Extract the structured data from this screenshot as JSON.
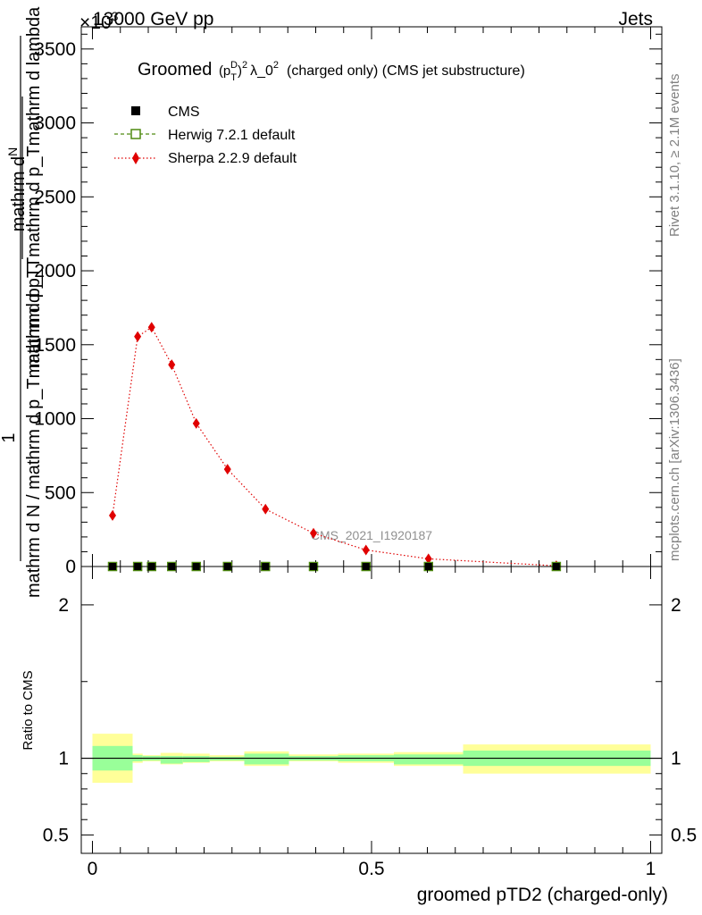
{
  "header": {
    "left": "13000 GeV pp",
    "right": "Jets",
    "exponent": "×10",
    "exponent_power": "3"
  },
  "side_labels": {
    "rivet": "Rivet 3.1.10, ≥ 2.1M events",
    "mcplots": "mcplots.cern.ch [arXiv:1306.3436]"
  },
  "watermark": "CMS_2021_I1920187",
  "title": {
    "prefix": "Groomed",
    "p": "(p",
    "sub_T": "T",
    "sup_D": "D",
    "close": ")",
    "sup_2": "2",
    "lambda": "λ_0",
    "sup_2b": "2",
    "suffix": "(charged only) (CMS jet substructure)"
  },
  "ylabel": {
    "one": "1",
    "num_top": "mathrm d",
    "num_N": "N",
    "den_top": "mathrm d p_Tmathrm d p_Tmathrm d lambda",
    "den": "mathrm d N / mathrm d p_Tmathrm d p_T"
  },
  "xlabel": "groomed pTD2 (charged-only)",
  "ratio_ylabel": "Ratio to CMS",
  "legend": [
    {
      "name": "CMS",
      "color": "#000000"
    },
    {
      "name": "Herwig 7.2.1 default",
      "color": "#4f8a10"
    },
    {
      "name": "Sherpa 2.2.9 default",
      "color": "#e00000"
    }
  ],
  "colors": {
    "band_inner": "#99ff99",
    "band_outer": "#ffff99",
    "sherpa": "#e00000",
    "herwig": "#4f8a10"
  },
  "chart_data": [
    {
      "type": "line",
      "panel": "main",
      "xlim": [
        -0.02,
        1.02
      ],
      "ylim": [
        0,
        3650
      ],
      "y_ticks": [
        0,
        500,
        1000,
        1500,
        2000,
        2500,
        3000,
        3500
      ],
      "y_tick_labels": [
        "0",
        "500",
        "1000",
        "1500",
        "2000",
        "2500",
        "3000",
        "3500"
      ],
      "series": [
        {
          "name": "CMS",
          "x": [
            0.036,
            0.081,
            0.106,
            0.142,
            0.186,
            0.242,
            0.31,
            0.396,
            0.49,
            0.602,
            0.831
          ],
          "values": [
            0,
            0,
            0,
            0,
            0,
            0,
            0,
            0,
            0,
            0,
            0
          ]
        },
        {
          "name": "Herwig 7.2.1 default",
          "x": [
            0.036,
            0.081,
            0.106,
            0.142,
            0.186,
            0.242,
            0.31,
            0.396,
            0.49,
            0.602,
            0.831
          ],
          "values": [
            0,
            0,
            0,
            0,
            0,
            0,
            0,
            0,
            0,
            0,
            0
          ]
        },
        {
          "name": "Sherpa 2.2.9 default",
          "x": [
            0.036,
            0.081,
            0.106,
            0.142,
            0.186,
            0.242,
            0.31,
            0.396,
            0.49,
            0.602,
            0.831
          ],
          "values": [
            345,
            1555,
            1618,
            1365,
            968,
            658,
            388,
            225,
            112,
            52,
            5
          ]
        }
      ]
    },
    {
      "type": "area",
      "panel": "ratio",
      "xlim": [
        -0.02,
        1.02
      ],
      "ylim": [
        0.38,
        2.25
      ],
      "y_ticks": [
        0.5,
        1,
        2
      ],
      "y_tick_labels": [
        "0.5",
        "1",
        "2"
      ],
      "x_ticks": [
        0,
        0.5,
        1
      ],
      "x_tick_labels": [
        "0",
        "0.5",
        "1"
      ],
      "bins": [
        {
          "lo": 0.0,
          "hi": 0.072,
          "inner": [
            0.92,
            1.08
          ],
          "outer": [
            0.84,
            1.16
          ]
        },
        {
          "lo": 0.072,
          "hi": 0.09,
          "inner": [
            0.98,
            1.02
          ],
          "outer": [
            0.97,
            1.03
          ]
        },
        {
          "lo": 0.09,
          "hi": 0.122,
          "inner": [
            0.985,
            1.015
          ],
          "outer": [
            0.98,
            1.02
          ]
        },
        {
          "lo": 0.122,
          "hi": 0.162,
          "inner": [
            0.965,
            1.015
          ],
          "outer": [
            0.96,
            1.035
          ]
        },
        {
          "lo": 0.162,
          "hi": 0.21,
          "inner": [
            0.975,
            1.015
          ],
          "outer": [
            0.97,
            1.03
          ]
        },
        {
          "lo": 0.21,
          "hi": 0.272,
          "inner": [
            0.985,
            1.01
          ],
          "outer": [
            0.98,
            1.02
          ]
        },
        {
          "lo": 0.272,
          "hi": 0.352,
          "inner": [
            0.96,
            1.03
          ],
          "outer": [
            0.95,
            1.045
          ]
        },
        {
          "lo": 0.352,
          "hi": 0.44,
          "inner": [
            0.985,
            1.015
          ],
          "outer": [
            0.98,
            1.025
          ]
        },
        {
          "lo": 0.44,
          "hi": 0.54,
          "inner": [
            0.98,
            1.02
          ],
          "outer": [
            0.97,
            1.03
          ]
        },
        {
          "lo": 0.54,
          "hi": 0.664,
          "inner": [
            0.96,
            1.025
          ],
          "outer": [
            0.95,
            1.04
          ]
        },
        {
          "lo": 0.664,
          "hi": 1.0,
          "inner": [
            0.95,
            1.05
          ],
          "outer": [
            0.9,
            1.09
          ]
        }
      ]
    }
  ]
}
